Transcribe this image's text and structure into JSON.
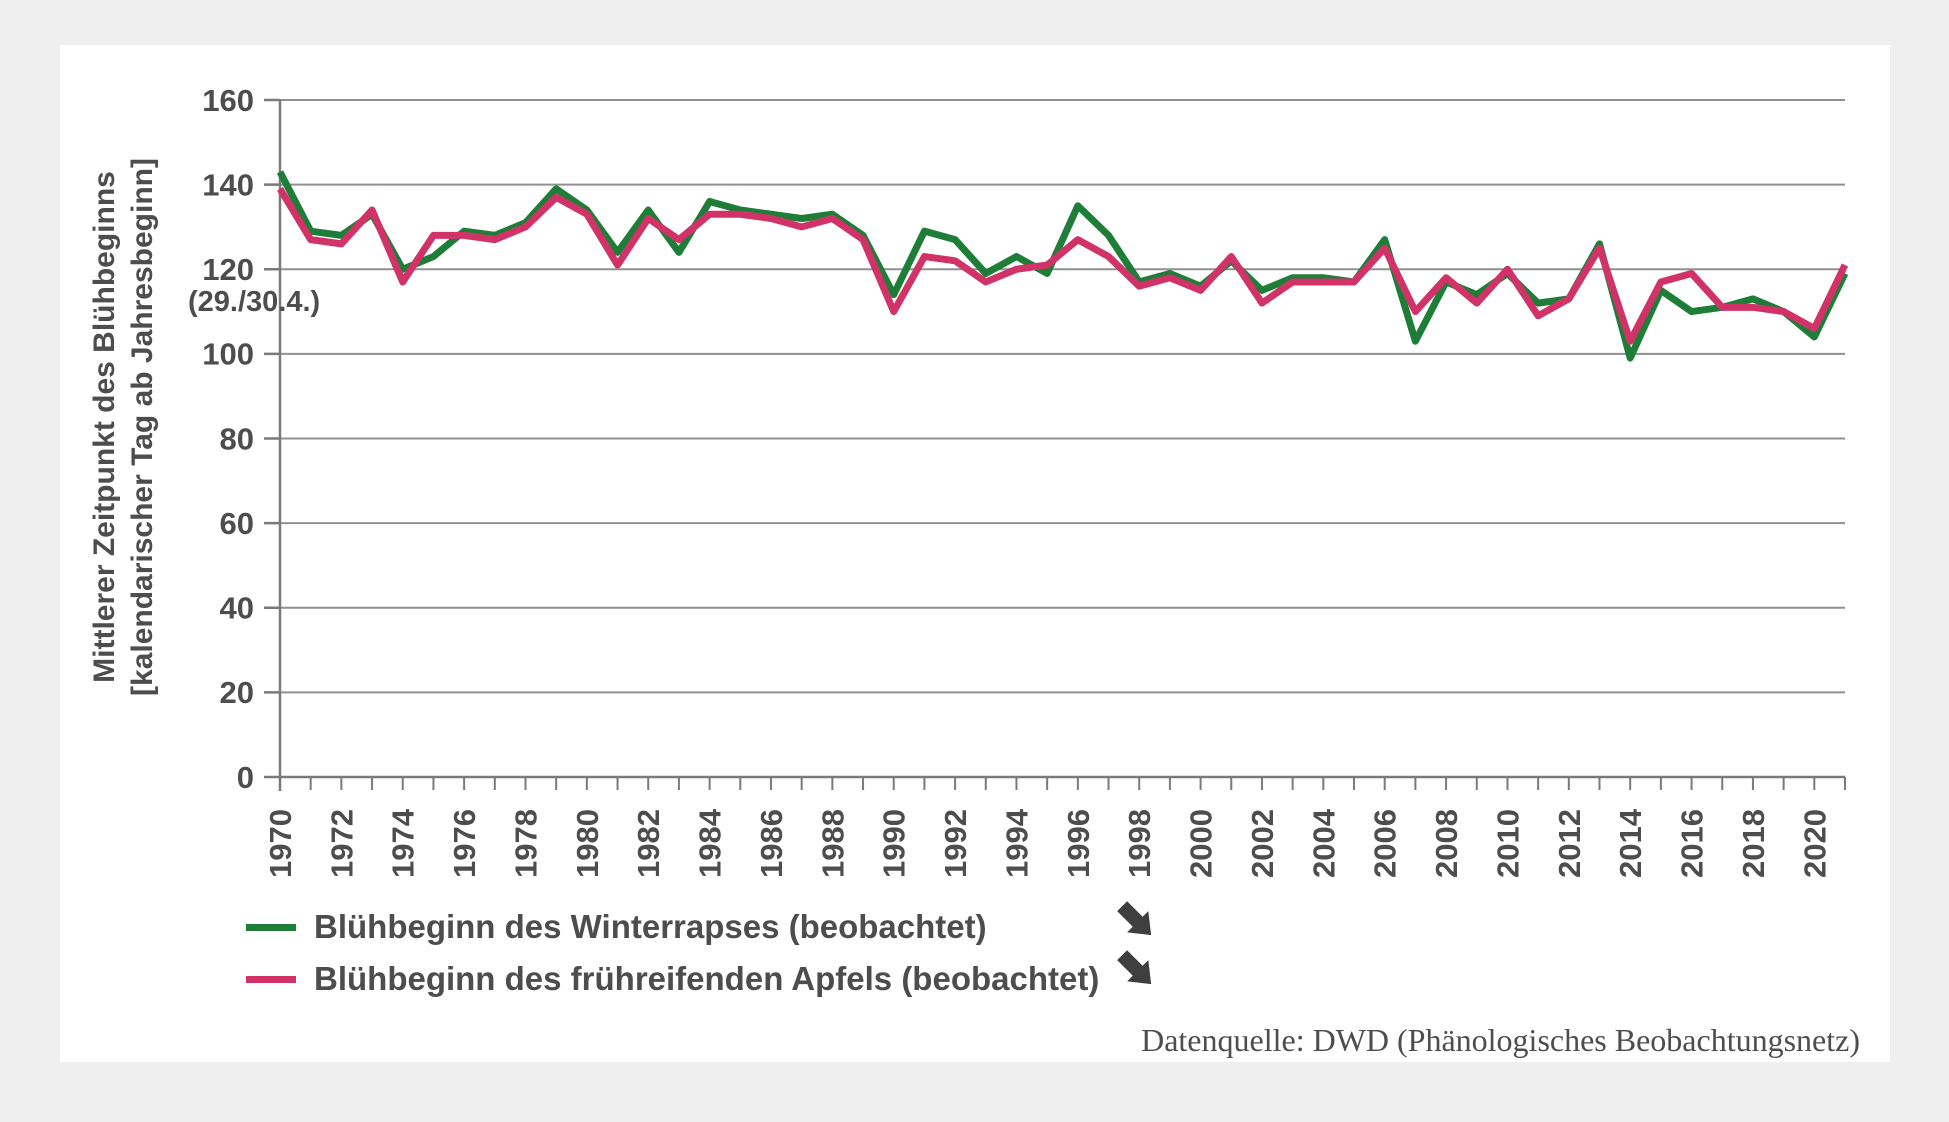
{
  "page": {
    "background": "#efefef",
    "card_background": "#ffffff"
  },
  "ui": {
    "y_axis_title_line1": "Mittlerer Zeitpunkt des Blühbeginns",
    "y_axis_title_line2": "[kalendarischer Tag ab Jahresbeginn]",
    "y_axis_annotation": "(29./30.4.)",
    "source_note": "Datenquelle: DWD (Phänologisches Beobachtungsnetz)",
    "legend": [
      {
        "label": "Blühbeginn des Winterrapses (beobachtet)",
        "color": "#1e7e38"
      },
      {
        "label": "Blühbeginn des frühreifenden Apfels (beobachtet)",
        "color": "#d13368"
      }
    ],
    "trend_icon": "arrow-down-right",
    "trend_icon_color": "#3f3f3f"
  },
  "chart_data": {
    "type": "line",
    "title": "",
    "xlabel": "",
    "ylabel": "Mittlerer Zeitpunkt des Blühbeginns [kalendarischer Tag ab Jahresbeginn]",
    "ylim": [
      0,
      160
    ],
    "yticks": [
      0,
      20,
      40,
      60,
      80,
      100,
      120,
      140,
      160
    ],
    "grid": true,
    "legend_position": "bottom-left",
    "axis_color": "#7a7a7a",
    "grid_color": "#909090",
    "tick_label_color": "#4d4d4d",
    "years": [
      1970,
      1971,
      1972,
      1973,
      1974,
      1975,
      1976,
      1977,
      1978,
      1979,
      1980,
      1981,
      1982,
      1983,
      1984,
      1985,
      1986,
      1987,
      1988,
      1989,
      1990,
      1991,
      1992,
      1993,
      1994,
      1995,
      1996,
      1997,
      1998,
      1999,
      2000,
      2001,
      2002,
      2003,
      2004,
      2005,
      2006,
      2007,
      2008,
      2009,
      2010,
      2011,
      2012,
      2013,
      2014,
      2015,
      2016,
      2017,
      2018,
      2019,
      2020,
      2021
    ],
    "x_labels": [
      "1970",
      "1972",
      "1974",
      "1976",
      "1978",
      "1980",
      "1982",
      "1984",
      "1986",
      "1988",
      "1990",
      "1992",
      "1994",
      "1996",
      "1998",
      "2000",
      "2002",
      "2004",
      "2006",
      "2008",
      "2010",
      "2012",
      "2014",
      "2016",
      "2018",
      "2020"
    ],
    "series": [
      {
        "name": "Blühbeginn des Winterrapses (beobachtet)",
        "color": "#1e7e38",
        "values": [
          143,
          129,
          128,
          133,
          120,
          123,
          129,
          128,
          131,
          139,
          134,
          124,
          134,
          124,
          136,
          134,
          133,
          132,
          133,
          128,
          114,
          129,
          127,
          119,
          123,
          119,
          135,
          128,
          117,
          119,
          116,
          122,
          115,
          118,
          118,
          117,
          127,
          103,
          117,
          114,
          119,
          112,
          113,
          126,
          99,
          115,
          110,
          111,
          113,
          110,
          104,
          119
        ]
      },
      {
        "name": "Blühbeginn des frühreifenden Apfels (beobachtet)",
        "color": "#d13368",
        "values": [
          139,
          127,
          126,
          134,
          117,
          128,
          128,
          127,
          130,
          137,
          133,
          121,
          132,
          127,
          133,
          133,
          132,
          130,
          132,
          127,
          110,
          123,
          122,
          117,
          120,
          121,
          127,
          123,
          116,
          118,
          115,
          123,
          112,
          117,
          117,
          117,
          125,
          110,
          118,
          112,
          120,
          109,
          113,
          125,
          103,
          117,
          119,
          111,
          111,
          110,
          106,
          121
        ]
      }
    ]
  }
}
